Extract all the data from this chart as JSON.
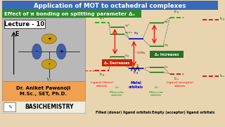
{
  "title": "Application of MOT to octahedral complexes",
  "subtitle": "Effect of π bonding on splitting parameter Δₒ",
  "title_bg": "#3a6ab5",
  "subtitle_bg": "#2d8b2d",
  "title_color": "white",
  "subtitle_color": "white",
  "lecture_text": "Lecture - 10",
  "author": "Dr. Aniket Pawanoji\nM.Sc., SET, Ph.D.",
  "brand": "BASICHEMISTRY",
  "bg_color": "#e8d5b0",
  "gray_box_color": "#b8b8b8",
  "orange_box_color": "#f0a050",
  "delta_decreases": "Δₒ Decreases",
  "delta_increases": "Δₒ Increases",
  "filled_label": "Filled (donor) ligand orbitals",
  "empty_label": "Empty (acceptor) ligand orbitals",
  "line_colors": {
    "green_dashed": "#00aa00",
    "red_dashed": "#cc0000",
    "mo_line": "#006600",
    "metal_line": "#0000cc",
    "connect": "#333333"
  }
}
